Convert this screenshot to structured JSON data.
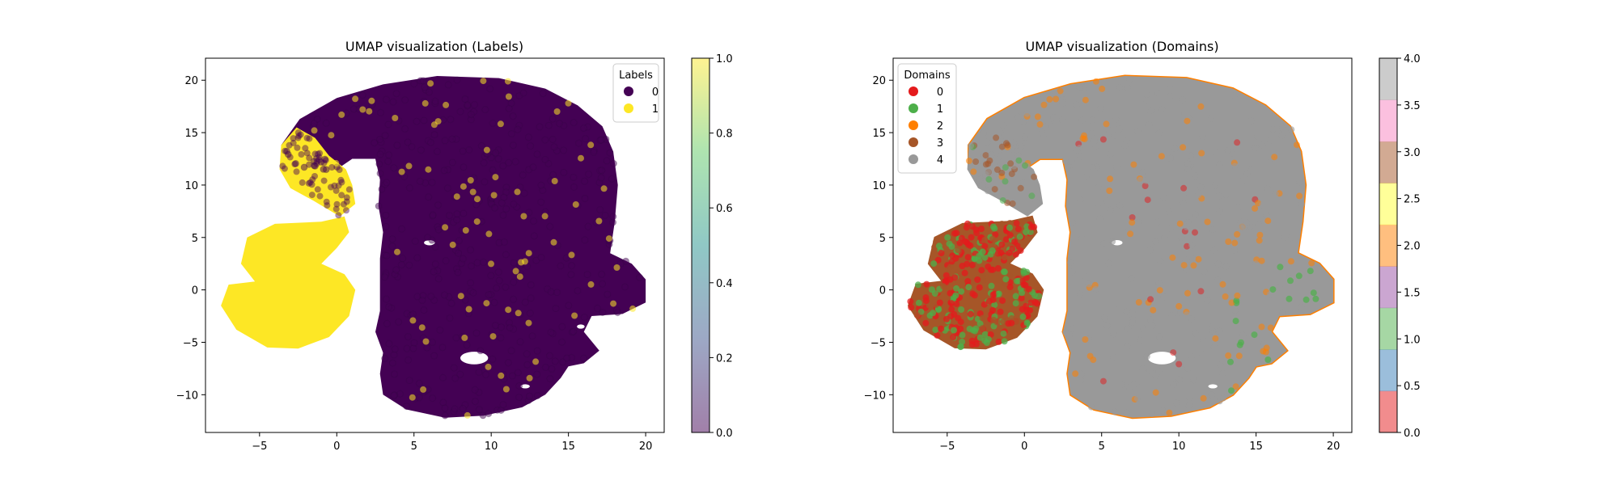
{
  "chart_data": [
    {
      "type": "scatter",
      "title": "UMAP visualization (Labels)",
      "xlabel": "",
      "ylabel": "",
      "xlim": [
        -8.5,
        21.2
      ],
      "ylim": [
        -13.6,
        22.1
      ],
      "xticks": [
        -5,
        0,
        5,
        10,
        15,
        20
      ],
      "yticks": [
        -10,
        -5,
        0,
        5,
        10,
        15,
        20
      ],
      "xtick_labels": [
        "−5",
        "0",
        "5",
        "10",
        "15",
        "20"
      ],
      "ytick_labels": [
        "−10",
        "−5",
        "0",
        "5",
        "10",
        "15",
        "20"
      ],
      "grid": false,
      "legend": {
        "title": "Labels",
        "placement": "top-right",
        "entries": [
          {
            "label": "0",
            "color": "#440154"
          },
          {
            "label": "1",
            "color": "#fde725"
          }
        ]
      },
      "colorbar": {
        "colormap": "viridis",
        "alpha": 0.5,
        "range": [
          0.0,
          1.0
        ],
        "ticks": [
          "0.0",
          "0.2",
          "0.4",
          "0.6",
          "0.8",
          "1.0"
        ]
      },
      "series": [
        {
          "label_value": 0,
          "color": "#440154",
          "regions": [
            {
              "kind": "main_body",
              "outline_xy": [
                [
                  -3.6,
                  13.8
                ],
                [
                  -2.4,
                  16.3
                ],
                [
                  0.0,
                  18.3
                ],
                [
                  3.0,
                  19.6
                ],
                [
                  6.5,
                  20.4
                ],
                [
                  10.5,
                  20.2
                ],
                [
                  13.5,
                  19.2
                ],
                [
                  15.6,
                  17.6
                ],
                [
                  17.2,
                  15.6
                ],
                [
                  17.9,
                  13.2
                ],
                [
                  18.2,
                  10.0
                ],
                [
                  18.0,
                  6.5
                ],
                [
                  17.7,
                  3.5
                ],
                [
                  19.1,
                  2.5
                ],
                [
                  20.0,
                  1.0
                ],
                [
                  20.0,
                  -1.2
                ],
                [
                  18.5,
                  -2.3
                ],
                [
                  16.5,
                  -2.5
                ],
                [
                  16.0,
                  -4.0
                ],
                [
                  17.0,
                  -5.8
                ],
                [
                  16.0,
                  -7.0
                ],
                [
                  15.0,
                  -7.3
                ],
                [
                  14.5,
                  -8.4
                ],
                [
                  13.5,
                  -10.0
                ],
                [
                  12.0,
                  -11.2
                ],
                [
                  9.5,
                  -12.0
                ],
                [
                  7.0,
                  -12.2
                ],
                [
                  4.5,
                  -11.4
                ],
                [
                  3.0,
                  -10.0
                ],
                [
                  2.8,
                  -8.0
                ],
                [
                  3.0,
                  -6.0
                ],
                [
                  2.5,
                  -4.0
                ],
                [
                  2.8,
                  -2.0
                ],
                [
                  2.8,
                  0.0
                ],
                [
                  2.8,
                  3.0
                ],
                [
                  3.0,
                  5.5
                ],
                [
                  2.7,
                  8.0
                ],
                [
                  2.8,
                  10.5
                ],
                [
                  2.5,
                  12.5
                ],
                [
                  1.0,
                  12.5
                ],
                [
                  0.0,
                  11.5
                ],
                [
                  -1.0,
                  10.5
                ],
                [
                  -2.0,
                  10.0
                ],
                [
                  -3.0,
                  10.3
                ],
                [
                  -3.6,
                  11.5
                ]
              ]
            }
          ]
        },
        {
          "label_value": 1,
          "color": "#fde725",
          "regions": [
            {
              "kind": "lower_lobe",
              "outline_xy": [
                [
                  -1.0,
                  6.5
                ],
                [
                  0.5,
                  7.0
                ],
                [
                  0.8,
                  5.5
                ],
                [
                  0.0,
                  4.0
                ],
                [
                  -1.0,
                  2.5
                ],
                [
                  0.5,
                  1.5
                ],
                [
                  1.2,
                  0.0
                ],
                [
                  0.8,
                  -2.5
                ],
                [
                  -0.5,
                  -4.5
                ],
                [
                  -2.5,
                  -5.6
                ],
                [
                  -4.5,
                  -5.5
                ],
                [
                  -6.5,
                  -3.8
                ],
                [
                  -7.5,
                  -1.5
                ],
                [
                  -7.0,
                  0.5
                ],
                [
                  -5.3,
                  0.8
                ],
                [
                  -6.2,
                  2.5
                ],
                [
                  -5.8,
                  5.0
                ],
                [
                  -4.0,
                  6.3
                ]
              ]
            },
            {
              "kind": "hook_arm",
              "outline_xy": [
                [
                  -3.7,
                  11.5
                ],
                [
                  -3.6,
                  13.8
                ],
                [
                  -2.6,
                  15.5
                ],
                [
                  -1.4,
                  14.5
                ],
                [
                  -0.5,
                  12.8
                ],
                [
                  0.6,
                  11.5
                ],
                [
                  1.0,
                  10.0
                ],
                [
                  1.2,
                  8.2
                ],
                [
                  0.2,
                  7.0
                ],
                [
                  -1.5,
                  8.5
                ],
                [
                  -3.0,
                  9.7
                ]
              ]
            }
          ]
        }
      ]
    },
    {
      "type": "scatter",
      "title": "UMAP visualization (Domains)",
      "xlabel": "",
      "ylabel": "",
      "xlim": [
        -8.5,
        21.2
      ],
      "ylim": [
        -13.6,
        22.1
      ],
      "xticks": [
        -5,
        0,
        5,
        10,
        15,
        20
      ],
      "yticks": [
        -10,
        -5,
        0,
        5,
        10,
        15,
        20
      ],
      "xtick_labels": [
        "−5",
        "0",
        "5",
        "10",
        "15",
        "20"
      ],
      "ytick_labels": [
        "−10",
        "−5",
        "0",
        "5",
        "10",
        "15",
        "20"
      ],
      "grid": false,
      "legend": {
        "title": "Domains",
        "placement": "top-left",
        "entries": [
          {
            "label": "0",
            "color": "#e41a1c"
          },
          {
            "label": "1",
            "color": "#4daf4a"
          },
          {
            "label": "2",
            "color": "#ff7f00"
          },
          {
            "label": "3",
            "color": "#a65628"
          },
          {
            "label": "4",
            "color": "#999999"
          }
        ]
      },
      "colorbar": {
        "colormap": "Set1",
        "alpha": 0.5,
        "range": [
          0.0,
          4.0
        ],
        "ticks": [
          "0.0",
          "0.5",
          "1.0",
          "1.5",
          "2.0",
          "2.5",
          "3.0",
          "3.5",
          "4.0"
        ],
        "bands": [
          "#e41a1c",
          "#377eb8",
          "#4daf4a",
          "#984ea3",
          "#ff7f00",
          "#ffff33",
          "#a65628",
          "#f781bf",
          "#999999"
        ]
      },
      "series": [
        {
          "domain": 0,
          "color": "#e41a1c",
          "dominant_region": "left lobe"
        },
        {
          "domain": 1,
          "color": "#4daf4a",
          "dominant_region": "left lobe and lower-right"
        },
        {
          "domain": 2,
          "color": "#ff7f00",
          "dominant_region": "scattered in main body, lower-right"
        },
        {
          "domain": 3,
          "color": "#a65628",
          "dominant_region": "left lobe"
        },
        {
          "domain": 4,
          "color": "#999999",
          "dominant_region": "main body"
        }
      ]
    }
  ]
}
